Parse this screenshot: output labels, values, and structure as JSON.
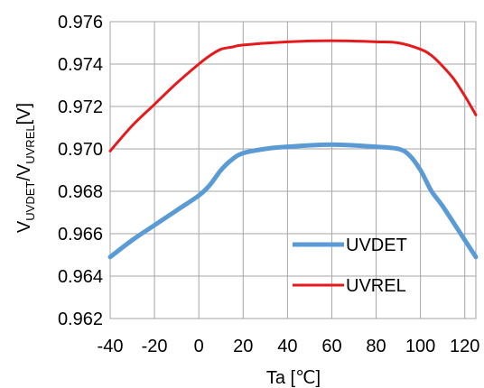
{
  "chart_data": {
    "type": "line",
    "xlabel": "Ta [℃]",
    "ylabel": {
      "main1": "V",
      "sub1": "UVDET",
      "mid": "/V",
      "sub2": "UVREL",
      "end": "[V]"
    },
    "xlim": [
      -40,
      125
    ],
    "ylim": [
      0.962,
      0.976
    ],
    "x_ticks": [
      -40,
      -20,
      0,
      20,
      40,
      60,
      80,
      100,
      120
    ],
    "x_tick_labels": [
      "-40",
      "-20",
      "0",
      "20",
      "40",
      "60",
      "80",
      "100",
      "120"
    ],
    "y_ticks": [
      0.962,
      0.964,
      0.966,
      0.968,
      0.97,
      0.972,
      0.974,
      0.976
    ],
    "y_tick_labels": [
      "0.962",
      "0.964",
      "0.966",
      "0.968",
      "0.970",
      "0.972",
      "0.974",
      "0.976"
    ],
    "grid": true,
    "legend_position": "bottom-right",
    "series": [
      {
        "name": "UVDET",
        "color": "#5b9bd5",
        "x": [
          -40,
          -30,
          -20,
          -10,
          0,
          5,
          10,
          15,
          20,
          30,
          40,
          60,
          80,
          90,
          95,
          100,
          105,
          110,
          120,
          125
        ],
        "y": [
          0.9649,
          0.9657,
          0.9664,
          0.9671,
          0.9678,
          0.9683,
          0.969,
          0.9695,
          0.9698,
          0.97,
          0.9701,
          0.9702,
          0.9701,
          0.97,
          0.9697,
          0.969,
          0.968,
          0.9673,
          0.9657,
          0.9649
        ]
      },
      {
        "name": "UVREL",
        "color": "#e41a1c",
        "x": [
          -40,
          -30,
          -20,
          -10,
          0,
          5,
          10,
          15,
          20,
          40,
          60,
          80,
          90,
          100,
          105,
          110,
          115,
          120,
          125
        ],
        "y": [
          0.9699,
          0.9711,
          0.9721,
          0.9731,
          0.974,
          0.9744,
          0.9747,
          0.9748,
          0.9749,
          0.97505,
          0.9751,
          0.97505,
          0.975,
          0.9747,
          0.9744,
          0.9739,
          0.9733,
          0.9725,
          0.9716
        ]
      }
    ]
  }
}
